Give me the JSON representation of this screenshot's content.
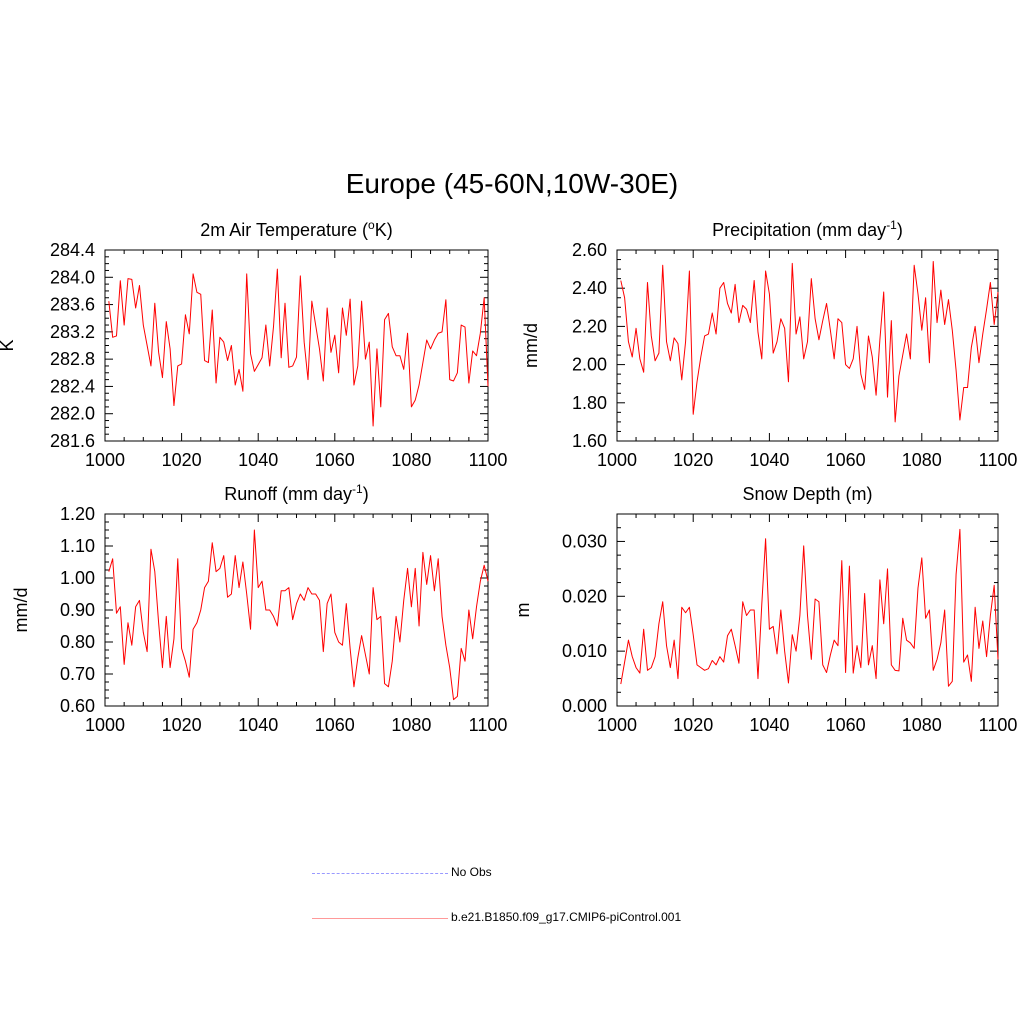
{
  "title": "Europe (45-60N,10W-30E)",
  "colors": {
    "series": "#ff0000",
    "obs": "#9999ff"
  },
  "legend": {
    "obs_label": "No Obs",
    "model_label": "b.e21.B1850.f09_g17.CMIP6-piControl.001"
  },
  "chart_data": [
    {
      "type": "line",
      "id": "temp",
      "title": "2m Air Temperature (",
      "title_sup": "o",
      "title_after": "K)",
      "title_super_after": "",
      "title_close": "",
      "ylabel": "K",
      "xlim": [
        1000,
        1100
      ],
      "ylim": [
        281.6,
        284.4
      ],
      "xticks": [
        1000,
        1020,
        1040,
        1060,
        1080,
        1100
      ],
      "xtick_labels": [
        "1000",
        "1020",
        "1040",
        "1060",
        "1080",
        "1100"
      ],
      "yticks": [
        281.6,
        282.0,
        282.4,
        282.8,
        283.2,
        283.6,
        284.0,
        284.4
      ],
      "ytick_labels": [
        "281.6",
        "282.0",
        "282.4",
        "282.8",
        "283.2",
        "283.6",
        "284.0",
        "284.4"
      ],
      "x_start": 1001,
      "values": [
        283.65,
        283.12,
        283.14,
        283.95,
        283.3,
        283.98,
        283.97,
        283.55,
        283.88,
        283.3,
        283.0,
        282.7,
        283.62,
        282.9,
        282.53,
        283.35,
        282.95,
        282.12,
        282.7,
        282.73,
        283.45,
        283.17,
        284.05,
        283.78,
        283.75,
        282.78,
        282.75,
        283.52,
        282.45,
        283.12,
        283.05,
        282.78,
        283.0,
        282.42,
        282.65,
        282.33,
        284.05,
        282.88,
        282.62,
        282.72,
        282.82,
        283.3,
        282.7,
        283.28,
        284.12,
        282.82,
        283.62,
        282.68,
        282.7,
        282.83,
        284.02,
        283.05,
        282.5,
        283.65,
        283.3,
        282.95,
        282.48,
        283.55,
        282.9,
        283.15,
        282.6,
        283.55,
        283.15,
        283.68,
        282.42,
        282.7,
        283.65,
        282.8,
        283.05,
        281.82,
        282.95,
        282.1,
        283.38,
        283.47,
        282.98,
        282.85,
        282.85,
        282.65,
        283.18,
        282.1,
        282.2,
        282.42,
        282.75,
        283.08,
        282.95,
        283.08,
        283.18,
        283.2,
        283.67,
        282.5,
        282.48,
        282.6,
        283.3,
        283.27,
        282.45,
        282.92,
        282.85,
        283.18,
        283.7,
        282.4
      ]
    },
    {
      "type": "line",
      "id": "precip",
      "title": "Precipitation (mm day",
      "title_sup": "-1",
      "title_after": ")",
      "ylabel": "mm/d",
      "xlim": [
        1000,
        1100
      ],
      "ylim": [
        1.6,
        2.6
      ],
      "xticks": [
        1000,
        1020,
        1040,
        1060,
        1080,
        1100
      ],
      "xtick_labels": [
        "1000",
        "1020",
        "1040",
        "1060",
        "1080",
        "1100"
      ],
      "yticks": [
        1.6,
        1.8,
        2.0,
        2.2,
        2.4,
        2.6
      ],
      "ytick_labels": [
        "1.60",
        "1.80",
        "2.00",
        "2.20",
        "2.40",
        "2.60"
      ],
      "x_start": 1001,
      "values": [
        2.44,
        2.35,
        2.12,
        2.04,
        2.19,
        2.03,
        1.96,
        2.43,
        2.15,
        2.02,
        2.06,
        2.52,
        2.12,
        2.02,
        2.14,
        2.11,
        1.92,
        2.12,
        2.49,
        1.74,
        1.91,
        2.04,
        2.15,
        2.16,
        2.27,
        2.16,
        2.4,
        2.43,
        2.32,
        2.27,
        2.42,
        2.22,
        2.31,
        2.29,
        2.22,
        2.44,
        2.17,
        2.03,
        2.49,
        2.37,
        2.06,
        2.12,
        2.24,
        2.19,
        1.91,
        2.53,
        2.16,
        2.25,
        2.03,
        2.12,
        2.45,
        2.24,
        2.13,
        2.23,
        2.32,
        2.18,
        2.03,
        2.24,
        2.22,
        2.0,
        1.98,
        2.03,
        2.2,
        1.95,
        1.87,
        2.15,
        2.04,
        1.84,
        2.13,
        2.38,
        1.83,
        2.23,
        1.7,
        1.94,
        2.05,
        2.16,
        2.03,
        2.52,
        2.37,
        2.18,
        2.35,
        2.01,
        2.54,
        2.22,
        2.39,
        2.21,
        2.34,
        2.18,
        1.97,
        1.71,
        1.88,
        1.88,
        2.09,
        2.2,
        2.01,
        2.16,
        2.29,
        2.43,
        2.21,
        2.38
      ]
    },
    {
      "type": "line",
      "id": "runoff",
      "title": "Runoff (mm day",
      "title_sup": "-1",
      "title_after": ")",
      "ylabel": "mm/d",
      "xlim": [
        1000,
        1100
      ],
      "ylim": [
        0.6,
        1.2
      ],
      "xticks": [
        1000,
        1020,
        1040,
        1060,
        1080,
        1100
      ],
      "xtick_labels": [
        "1000",
        "1020",
        "1040",
        "1060",
        "1080",
        "1100"
      ],
      "yticks": [
        0.6,
        0.7,
        0.8,
        0.9,
        1.0,
        1.1,
        1.2
      ],
      "ytick_labels": [
        "0.60",
        "0.70",
        "0.80",
        "0.90",
        "1.00",
        "1.10",
        "1.20"
      ],
      "x_start": 1001,
      "values": [
        1.02,
        1.06,
        0.89,
        0.91,
        0.73,
        0.86,
        0.79,
        0.91,
        0.93,
        0.83,
        0.77,
        1.09,
        1.02,
        0.86,
        0.72,
        0.88,
        0.72,
        0.81,
        1.06,
        0.78,
        0.74,
        0.69,
        0.84,
        0.86,
        0.9,
        0.97,
        0.99,
        1.11,
        1.02,
        1.03,
        1.07,
        0.94,
        0.95,
        1.07,
        0.97,
        1.05,
        0.95,
        0.84,
        1.15,
        0.97,
        0.99,
        0.9,
        0.9,
        0.88,
        0.85,
        0.96,
        0.96,
        0.97,
        0.87,
        0.92,
        0.95,
        0.93,
        0.97,
        0.95,
        0.95,
        0.93,
        0.77,
        0.92,
        0.95,
        0.83,
        0.8,
        0.79,
        0.92,
        0.78,
        0.66,
        0.75,
        0.82,
        0.76,
        0.7,
        0.97,
        0.87,
        0.88,
        0.67,
        0.66,
        0.74,
        0.88,
        0.8,
        0.93,
        1.03,
        0.91,
        1.03,
        0.85,
        1.08,
        0.98,
        1.07,
        0.96,
        1.06,
        0.88,
        0.79,
        0.72,
        0.62,
        0.63,
        0.78,
        0.74,
        0.9,
        0.81,
        0.91,
        0.99,
        1.04,
        0.99
      ]
    },
    {
      "type": "line",
      "id": "snow",
      "title": "Snow Depth (m)",
      "title_sup": "",
      "title_after": "",
      "ylabel": "m",
      "xlim": [
        1000,
        1100
      ],
      "ylim": [
        0.0,
        0.035
      ],
      "xticks": [
        1000,
        1020,
        1040,
        1060,
        1080,
        1100
      ],
      "xtick_labels": [
        "1000",
        "1020",
        "1040",
        "1060",
        "1080",
        "1100"
      ],
      "yticks": [
        0.0,
        0.01,
        0.02,
        0.03
      ],
      "ytick_labels": [
        "0.000",
        "0.010",
        "0.020",
        "0.030"
      ],
      "x_start": 1001,
      "values": [
        0.004,
        0.008,
        0.012,
        0.009,
        0.007,
        0.006,
        0.014,
        0.0065,
        0.007,
        0.009,
        0.015,
        0.019,
        0.011,
        0.007,
        0.012,
        0.005,
        0.018,
        0.017,
        0.018,
        0.013,
        0.0075,
        0.007,
        0.0065,
        0.0068,
        0.0083,
        0.0075,
        0.009,
        0.008,
        0.0128,
        0.014,
        0.011,
        0.0078,
        0.019,
        0.0165,
        0.0175,
        0.0175,
        0.005,
        0.0185,
        0.0305,
        0.014,
        0.0145,
        0.0095,
        0.0175,
        0.01,
        0.0042,
        0.013,
        0.01,
        0.0165,
        0.0292,
        0.0165,
        0.0085,
        0.0195,
        0.019,
        0.0075,
        0.0061,
        0.0093,
        0.012,
        0.011,
        0.0265,
        0.0061,
        0.0255,
        0.006,
        0.011,
        0.007,
        0.0205,
        0.0075,
        0.011,
        0.005,
        0.023,
        0.015,
        0.025,
        0.0075,
        0.0065,
        0.0064,
        0.016,
        0.012,
        0.0115,
        0.0105,
        0.0215,
        0.027,
        0.016,
        0.0175,
        0.0065,
        0.0085,
        0.0115,
        0.0175,
        0.0036,
        0.0045,
        0.024,
        0.0322,
        0.008,
        0.0093,
        0.0045,
        0.018,
        0.0105,
        0.0155,
        0.009,
        0.0165,
        0.022,
        0.0085
      ]
    }
  ]
}
